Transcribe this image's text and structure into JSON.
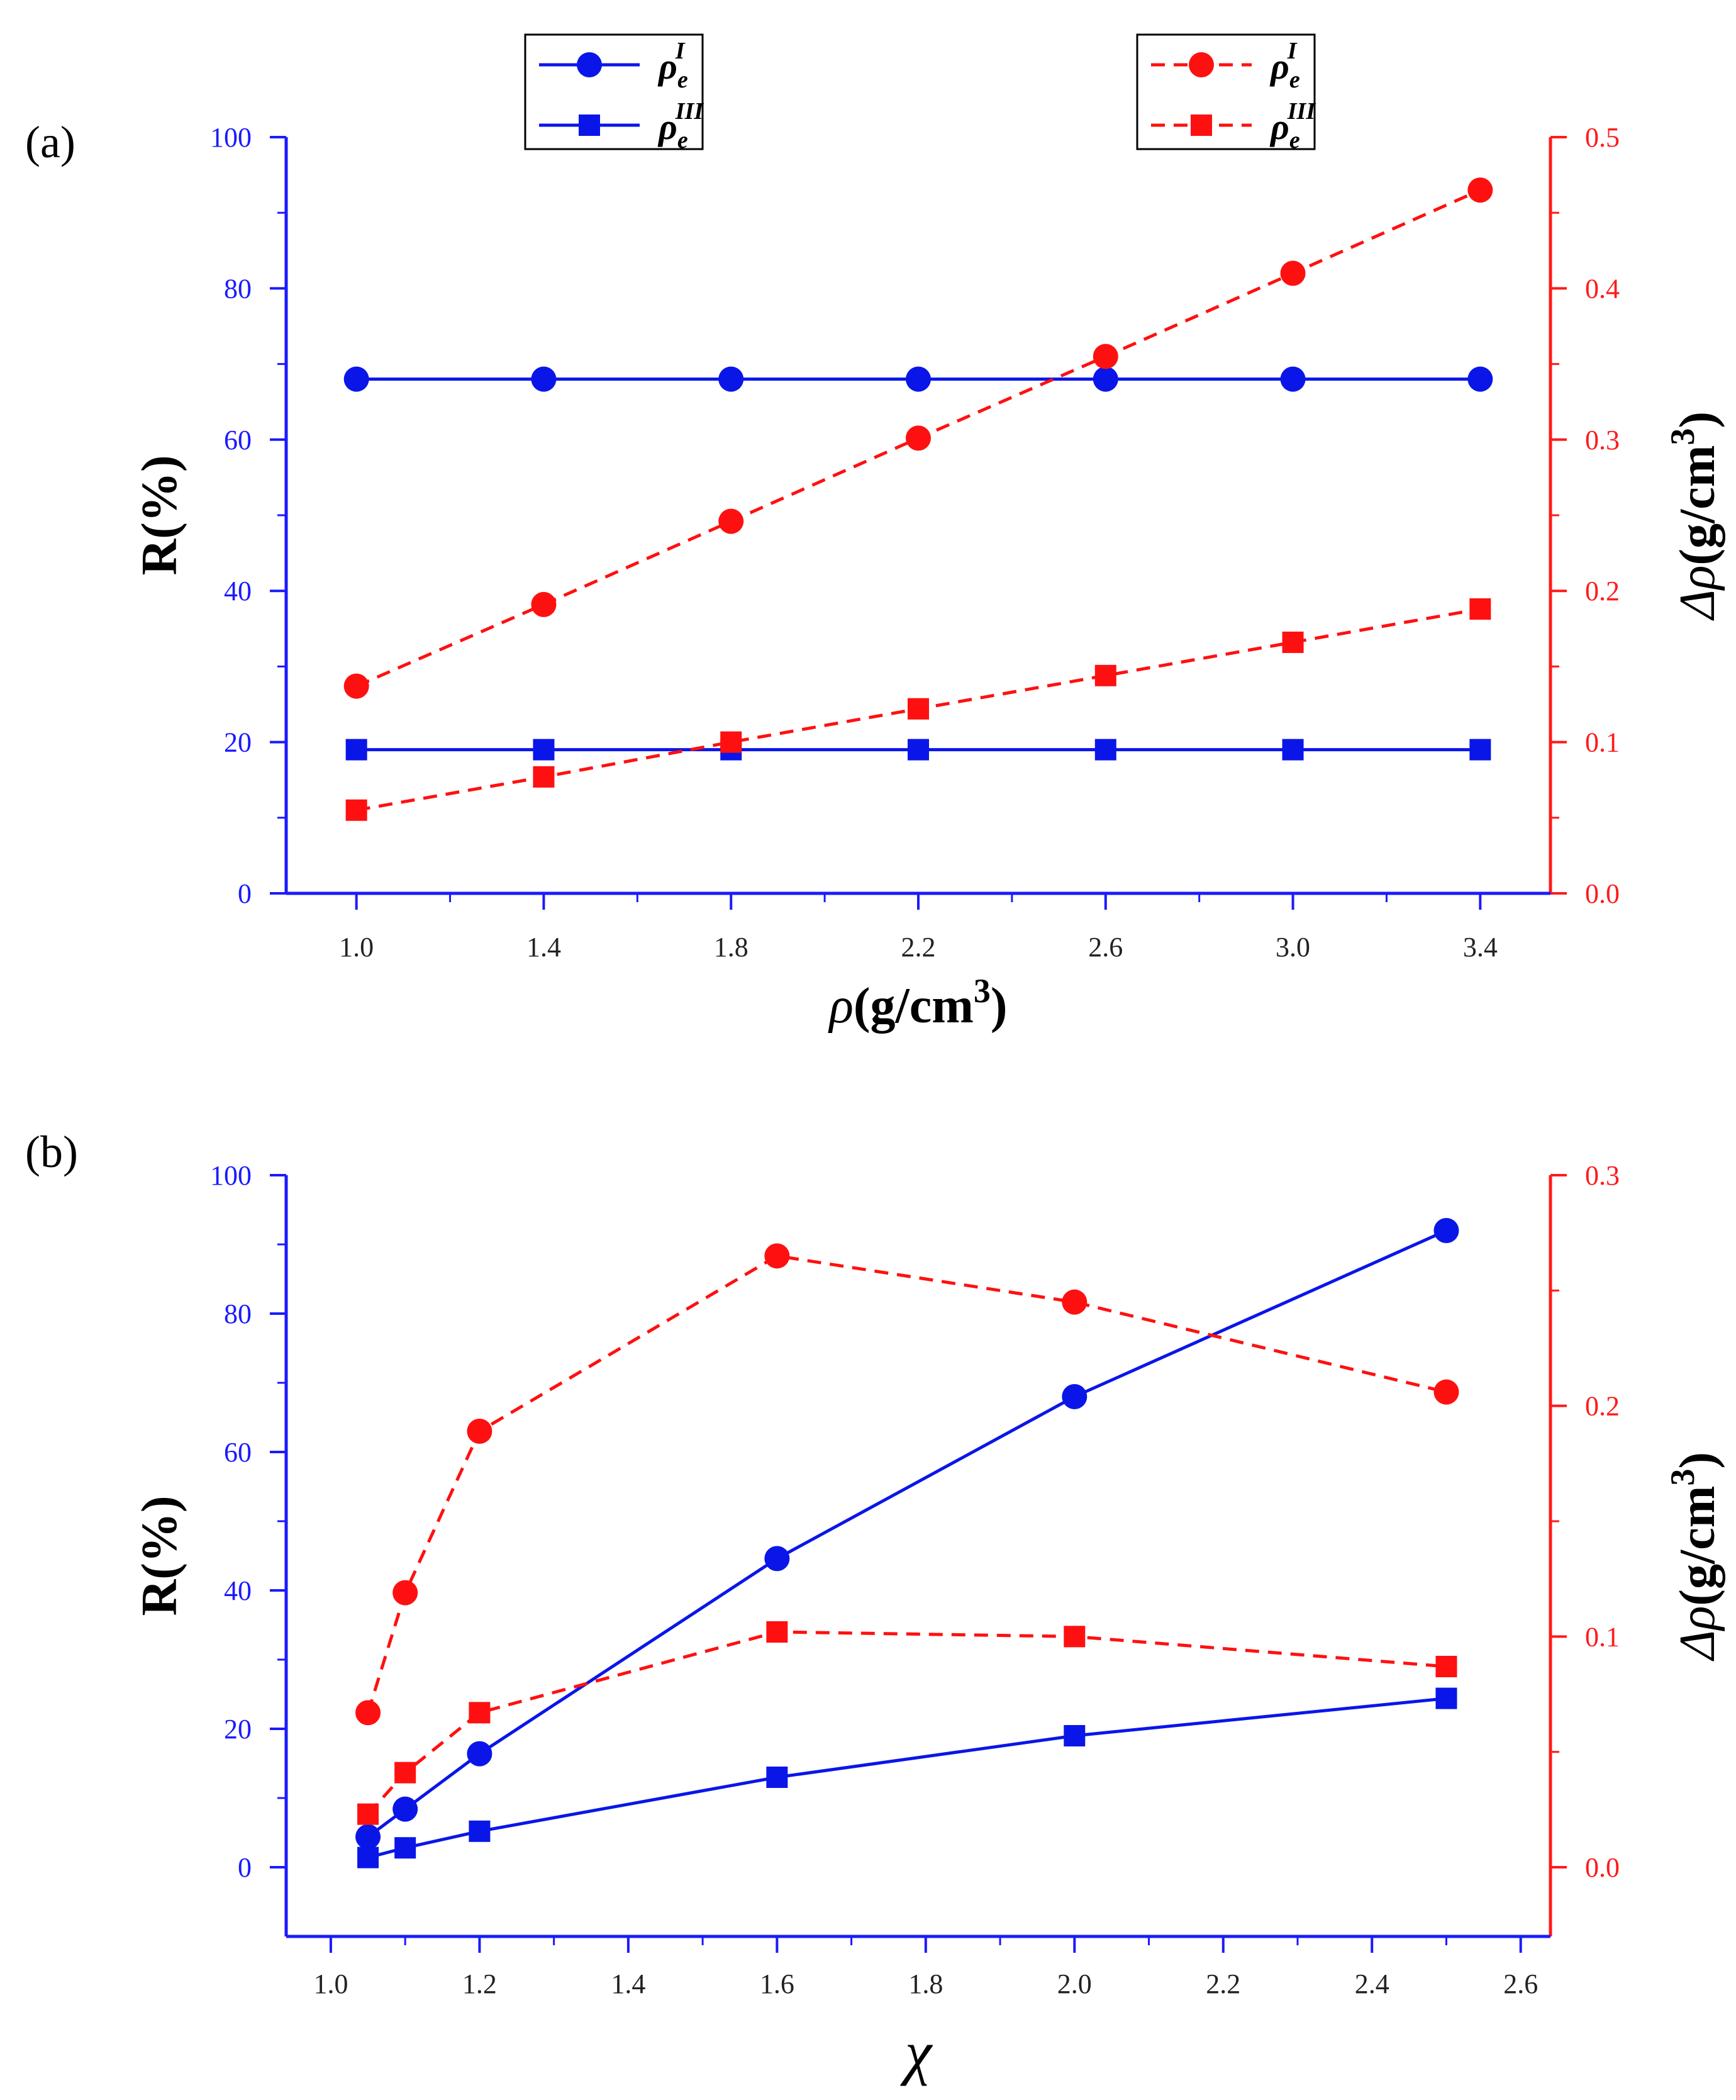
{
  "colors": {
    "left_axis": "#1a1aff",
    "right_axis": "#ff1a1a",
    "series_blue": "#0a16e8",
    "series_red": "#ff1010"
  },
  "legend": {
    "rho_symbol": "ρ",
    "sub": "e",
    "sup_I": "I",
    "sup_III": "III"
  },
  "chart_data": [
    {
      "panel_label": "(a)",
      "type": "line",
      "xlabel": {
        "symbol": "ρ",
        "unit": "(g/cm",
        "exp": "3",
        "close": ")"
      },
      "ylabel_left": "R(%)",
      "ylabel_right": {
        "symbol": "Δρ",
        "unit": "(g/cm",
        "exp": "3",
        "close": ")"
      },
      "xlim": [
        0.85,
        3.55
      ],
      "ylim_left": [
        0,
        100
      ],
      "ylim_right": [
        0.0,
        0.5
      ],
      "x_ticks": [
        1.0,
        1.4,
        1.8,
        2.2,
        2.6,
        3.0,
        3.4
      ],
      "x_tick_labels": [
        "1.0",
        "1.4",
        "1.8",
        "2.2",
        "2.6",
        "3.0",
        "3.4"
      ],
      "y_left_ticks": [
        0,
        20,
        40,
        60,
        80,
        100
      ],
      "y_left_tick_labels": [
        "0",
        "20",
        "40",
        "60",
        "80",
        "100"
      ],
      "y_right_ticks": [
        0.0,
        0.1,
        0.2,
        0.3,
        0.4,
        0.5
      ],
      "y_right_tick_labels": [
        "0.0",
        "0.1",
        "0.2",
        "0.3",
        "0.4",
        "0.5"
      ],
      "x": [
        1.0,
        1.4,
        1.8,
        2.2,
        2.6,
        3.0,
        3.4
      ],
      "series": [
        {
          "name": "R rho_e^I",
          "axis": "left",
          "marker": "circle",
          "style": "solid",
          "values": [
            68,
            68,
            68,
            68,
            68,
            68,
            68
          ]
        },
        {
          "name": "R rho_e^III",
          "axis": "left",
          "marker": "square",
          "style": "solid",
          "values": [
            19,
            19,
            19,
            19,
            19,
            19,
            19
          ]
        },
        {
          "name": "Delta rho_e^I",
          "axis": "right",
          "marker": "circle",
          "style": "dashed",
          "values": [
            0.137,
            0.191,
            0.246,
            0.301,
            0.355,
            0.41,
            0.465
          ]
        },
        {
          "name": "Delta rho_e^III",
          "axis": "right",
          "marker": "square",
          "style": "dashed",
          "values": [
            0.055,
            0.077,
            0.1,
            0.122,
            0.144,
            0.166,
            0.188
          ]
        }
      ]
    },
    {
      "panel_label": "(b)",
      "type": "line",
      "xlabel": {
        "symbol": "χ"
      },
      "ylabel_left": "R(%)",
      "ylabel_right": {
        "symbol": "Δρ",
        "unit": "(g/cm",
        "exp": "3",
        "close": ")"
      },
      "xlim": [
        0.94,
        2.64
      ],
      "ylim_left": [
        -10,
        100
      ],
      "ylim_right": [
        -0.03,
        0.3
      ],
      "x_ticks": [
        1.0,
        1.2,
        1.4,
        1.6,
        1.8,
        2.0,
        2.2,
        2.4,
        2.6
      ],
      "x_tick_labels": [
        "1.0",
        "1.2",
        "1.4",
        "1.6",
        "1.8",
        "2.0",
        "2.2",
        "2.4",
        "2.6"
      ],
      "y_left_ticks": [
        0,
        20,
        40,
        60,
        80,
        100
      ],
      "y_left_tick_labels": [
        "0",
        "20",
        "40",
        "60",
        "80",
        "100"
      ],
      "y_right_ticks": [
        0.0,
        0.1,
        0.2,
        0.3
      ],
      "y_right_tick_labels": [
        "0.0",
        "0.1",
        "0.2",
        "0.3"
      ],
      "x": [
        1.05,
        1.1,
        1.2,
        1.6,
        2.0,
        2.5
      ],
      "series": [
        {
          "name": "R rho_e^I",
          "axis": "left",
          "marker": "circle",
          "style": "solid",
          "values": [
            4.4,
            8.4,
            16.4,
            44.6,
            68.0,
            92.0
          ]
        },
        {
          "name": "R rho_e^III",
          "axis": "left",
          "marker": "square",
          "style": "solid",
          "values": [
            1.4,
            2.8,
            5.2,
            13.0,
            19.0,
            24.4
          ]
        },
        {
          "name": "Delta rho_e^I",
          "axis": "right",
          "marker": "circle",
          "style": "dashed",
          "values": [
            0.067,
            0.119,
            0.189,
            0.265,
            0.245,
            0.206
          ]
        },
        {
          "name": "Delta rho_e^III",
          "axis": "right",
          "marker": "square",
          "style": "dashed",
          "values": [
            0.023,
            0.041,
            0.067,
            0.102,
            0.1,
            0.087
          ]
        }
      ]
    }
  ]
}
